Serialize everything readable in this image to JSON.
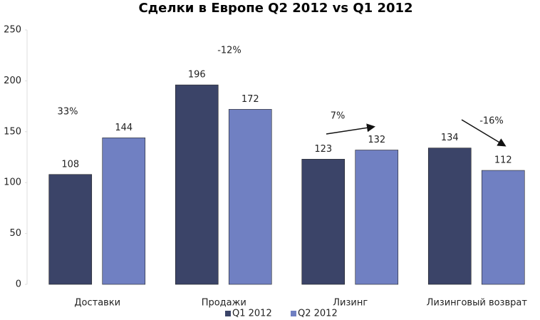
{
  "chart_data": {
    "type": "bar",
    "title": "Сделки в Европе Q2 2012 vs Q1 2012",
    "categories": [
      "Доставки",
      "Продажи",
      "Лизинг",
      "Лизинговый возврат"
    ],
    "series": [
      {
        "name": "Q1 2012",
        "color": "#3b4468",
        "values": [
          108,
          196,
          123,
          134
        ]
      },
      {
        "name": "Q2 2012",
        "color": "#7080c2",
        "values": [
          144,
          172,
          132,
          112
        ]
      }
    ],
    "ylim": [
      0,
      250
    ],
    "yticks": [
      0,
      50,
      100,
      150,
      200,
      250
    ],
    "grid": false,
    "legend": "bottom",
    "annotations": [
      "33%",
      "-12%",
      "7%",
      "-16%"
    ]
  }
}
